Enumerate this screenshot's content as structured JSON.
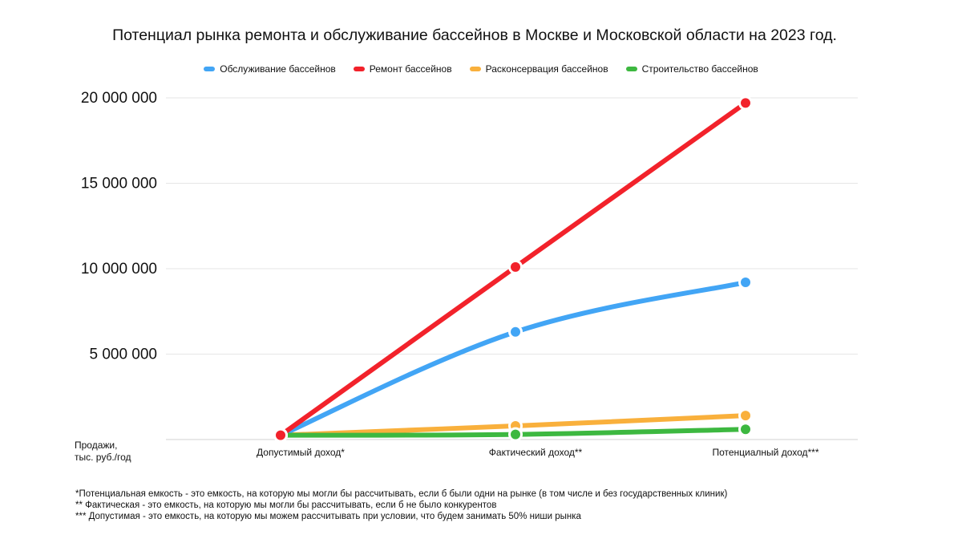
{
  "chart_data": {
    "type": "line",
    "title": "Потенциал рынка ремонта и обслуживание бассейнов в Москве и Московской области на 2023 год.",
    "ylabel": "Продажи,\nтыс. руб./год",
    "categories": [
      "Допустимый доход*",
      "Фактический доход**",
      "Потенциалный доход***"
    ],
    "y_ticks": [
      5000000,
      10000000,
      15000000,
      20000000
    ],
    "y_tick_labels": [
      "5 000 000",
      "10 000 000",
      "15 000 000",
      "20 000 000"
    ],
    "ylim": [
      0,
      20000000
    ],
    "grid": true,
    "legend_position": "top-center",
    "series": [
      {
        "name": "Обслуживание бассейнов",
        "color": "#42A5F5",
        "values": [
          250000,
          6300000,
          9200000
        ]
      },
      {
        "name": "Ремонт бассейнов",
        "color": "#F2222B",
        "values": [
          250000,
          10100000,
          19700000
        ]
      },
      {
        "name": "Расконсервация бассейнов",
        "color": "#F9B03C",
        "values": [
          250000,
          800000,
          1400000
        ]
      },
      {
        "name": "Строительство бассейнов",
        "color": "#3DB840",
        "values": [
          250000,
          300000,
          600000
        ]
      }
    ]
  },
  "footnotes": [
    "*Потенциальная емкость - это емкость, на которую мы могли бы рассчитывать, если б были одни на рынке (в том числе и без государственных клиник)",
    "** Фактическая - это емкость, на которую мы могли бы рассчитывать, если б не было конкурентов",
    "*** Допустимая - это емкость, на которую мы можем рассчитывать при условии, что будем занимать 50% ниши рынка"
  ]
}
